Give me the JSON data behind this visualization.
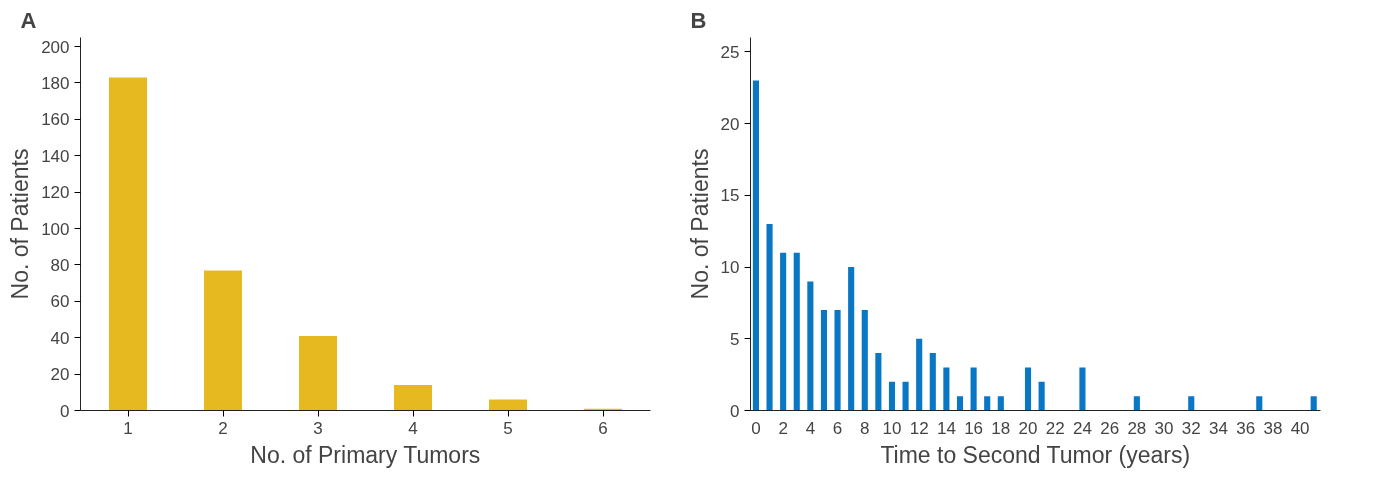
{
  "chart_data": [
    {
      "type": "bar",
      "title": "A",
      "xlabel": "No. of Primary Tumors",
      "ylabel": "No. of Patients",
      "categories": [
        "1",
        "2",
        "3",
        "4",
        "5",
        "6"
      ],
      "values": [
        183,
        77,
        41,
        14,
        6,
        1
      ],
      "color": "#e6b920",
      "ylim": [
        0,
        205
      ],
      "yticks": [
        0,
        20,
        40,
        60,
        80,
        100,
        120,
        140,
        160,
        180,
        200
      ],
      "grid": false
    },
    {
      "type": "bar",
      "title": "B",
      "xlabel": "Time to Second Tumor (years)",
      "ylabel": "No. of Patients",
      "x": [
        0,
        1,
        2,
        3,
        4,
        5,
        6,
        7,
        8,
        9,
        10,
        11,
        12,
        13,
        14,
        15,
        16,
        17,
        18,
        20,
        21,
        24,
        28,
        32,
        37,
        41
      ],
      "values": [
        23,
        13,
        11,
        11,
        9,
        7,
        7,
        10,
        7,
        4,
        2,
        2,
        5,
        4,
        3,
        1,
        3,
        1,
        1,
        3,
        2,
        3,
        1,
        1,
        1,
        1
      ],
      "color": "#0a77c4",
      "xlim": [
        -0.4,
        41.5
      ],
      "xticks": [
        0,
        2,
        4,
        6,
        8,
        10,
        12,
        14,
        16,
        18,
        20,
        22,
        24,
        26,
        28,
        30,
        32,
        34,
        36,
        38,
        40
      ],
      "ylim": [
        0,
        26
      ],
      "yticks": [
        0,
        5,
        10,
        15,
        20,
        25
      ],
      "grid": false
    }
  ]
}
